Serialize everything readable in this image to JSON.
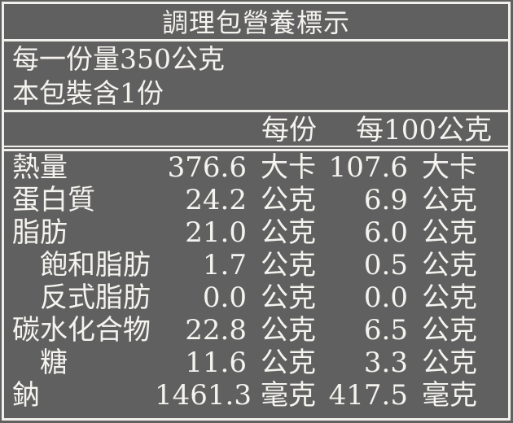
{
  "colors": {
    "background": "#606060",
    "text": "#f5f3ef",
    "rule": "#f2f0ec"
  },
  "label": {
    "title": "調理包營養標示",
    "serving_size": "每一份量350公克",
    "servings_per_package": "本包裝含1份",
    "column_headers": {
      "per_serving": "每份",
      "per_100g": "每100公克"
    },
    "rows": [
      {
        "name": "熱量",
        "per_serving_value": "376.6",
        "per_serving_unit": "大卡",
        "per_100g_value": "107.6",
        "per_100g_unit": "大卡"
      },
      {
        "name": "蛋白質",
        "per_serving_value": "24.2",
        "per_serving_unit": "公克",
        "per_100g_value": "6.9",
        "per_100g_unit": "公克"
      },
      {
        "name": "脂肪",
        "per_serving_value": "21.0",
        "per_serving_unit": "公克",
        "per_100g_value": "6.0",
        "per_100g_unit": "公克"
      },
      {
        "name": "飽和脂肪",
        "per_serving_value": "1.7",
        "per_serving_unit": "公克",
        "per_100g_value": "0.5",
        "per_100g_unit": "公克"
      },
      {
        "name": "反式脂肪",
        "per_serving_value": "0.0",
        "per_serving_unit": "公克",
        "per_100g_value": "0.0",
        "per_100g_unit": "公克"
      },
      {
        "name": "碳水化合物",
        "per_serving_value": "22.8",
        "per_serving_unit": "公克",
        "per_100g_value": "6.5",
        "per_100g_unit": "公克"
      },
      {
        "name": "糖",
        "per_serving_value": "11.6",
        "per_serving_unit": "公克",
        "per_100g_value": "3.3",
        "per_100g_unit": "公克"
      },
      {
        "name": "鈉",
        "per_serving_value": "1461.3",
        "per_serving_unit": "毫克",
        "per_100g_value": "417.5",
        "per_100g_unit": "毫克"
      }
    ]
  }
}
